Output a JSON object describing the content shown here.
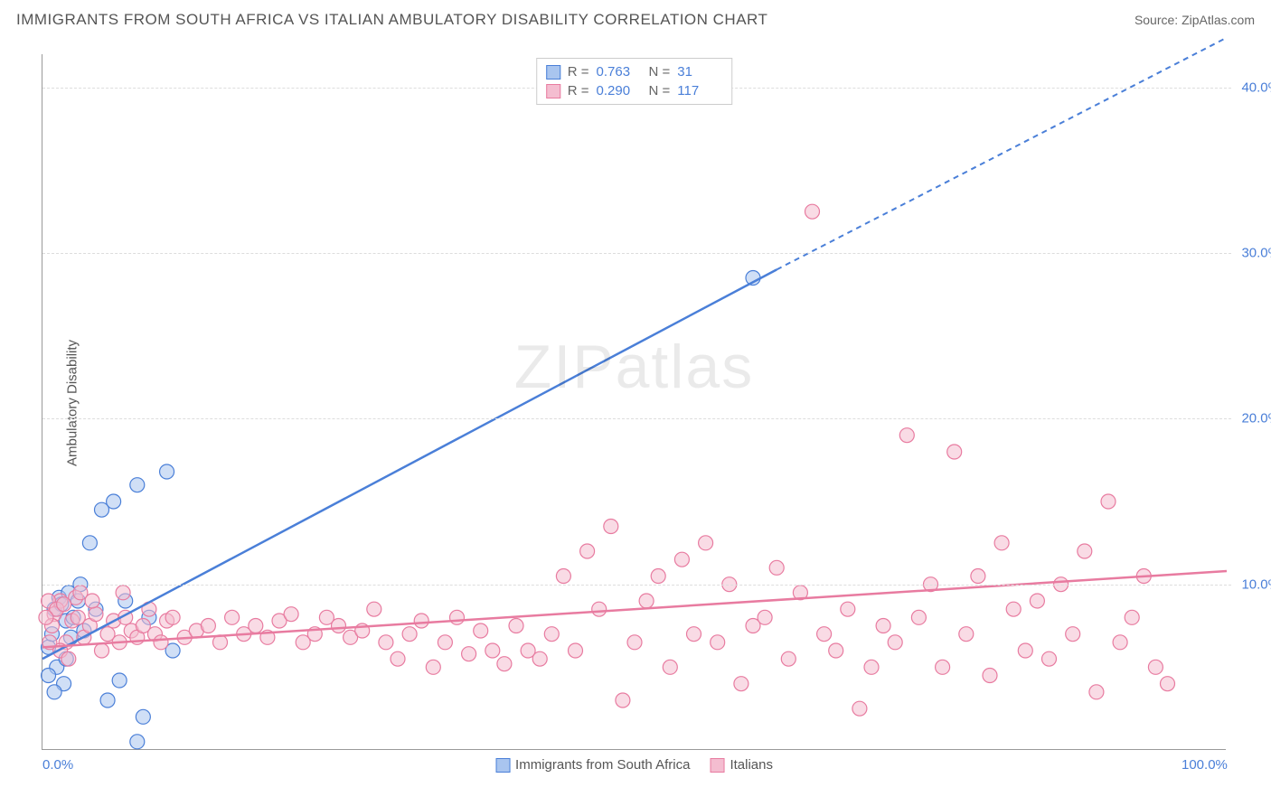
{
  "title": "IMMIGRANTS FROM SOUTH AFRICA VS ITALIAN AMBULATORY DISABILITY CORRELATION CHART",
  "source": "Source: ZipAtlas.com",
  "ylabel": "Ambulatory Disability",
  "watermark_zip": "ZIP",
  "watermark_atlas": "atlas",
  "chart": {
    "type": "scatter",
    "xlim": [
      0,
      100
    ],
    "ylim": [
      0,
      42
    ],
    "xticks": [
      {
        "v": 0,
        "label": "0.0%"
      },
      {
        "v": 100,
        "label": "100.0%"
      }
    ],
    "yticks": [
      {
        "v": 10,
        "label": "10.0%"
      },
      {
        "v": 20,
        "label": "20.0%"
      },
      {
        "v": 30,
        "label": "30.0%"
      },
      {
        "v": 40,
        "label": "40.0%"
      }
    ],
    "grid_color": "#dddddd",
    "background_color": "#ffffff",
    "marker_radius": 8,
    "marker_opacity": 0.55,
    "series": [
      {
        "name": "Immigrants from South Africa",
        "color": "#4a7fd8",
        "fill": "#a9c5ef",
        "R": "0.763",
        "N": "31",
        "trend": {
          "x1": 0,
          "y1": 5.5,
          "x2": 62,
          "y2": 29,
          "dash_from_x": 62,
          "x3": 100,
          "y3": 43
        },
        "points": [
          [
            0.5,
            6.2
          ],
          [
            0.8,
            7.0
          ],
          [
            1.0,
            8.5
          ],
          [
            1.2,
            5.0
          ],
          [
            1.4,
            9.2
          ],
          [
            1.6,
            8.8
          ],
          [
            1.8,
            4.0
          ],
          [
            2.0,
            7.8
          ],
          [
            2.2,
            9.5
          ],
          [
            2.4,
            6.8
          ],
          [
            2.6,
            8.0
          ],
          [
            3.0,
            9.0
          ],
          [
            3.2,
            10.0
          ],
          [
            3.5,
            7.2
          ],
          [
            4.0,
            12.5
          ],
          [
            4.5,
            8.5
          ],
          [
            5.0,
            14.5
          ],
          [
            5.5,
            3.0
          ],
          [
            6.0,
            15.0
          ],
          [
            6.5,
            4.2
          ],
          [
            7.0,
            9.0
          ],
          [
            8.0,
            16.0
          ],
          [
            8.5,
            2.0
          ],
          [
            9.0,
            8.0
          ],
          [
            10.5,
            16.8
          ],
          [
            11.0,
            6.0
          ],
          [
            0.5,
            4.5
          ],
          [
            1.0,
            3.5
          ],
          [
            2.0,
            5.5
          ],
          [
            8.0,
            0.5
          ],
          [
            60,
            28.5
          ]
        ]
      },
      {
        "name": "Italians",
        "color": "#e87ba0",
        "fill": "#f4bdd0",
        "R": "0.290",
        "N": "117",
        "trend": {
          "x1": 0,
          "y1": 6.2,
          "x2": 100,
          "y2": 10.8
        },
        "points": [
          [
            1,
            8.2
          ],
          [
            1.5,
            9.0
          ],
          [
            2,
            6.5
          ],
          [
            2.5,
            7.8
          ],
          [
            3,
            8.0
          ],
          [
            3.5,
            6.8
          ],
          [
            4,
            7.5
          ],
          [
            4.5,
            8.2
          ],
          [
            5,
            6.0
          ],
          [
            5.5,
            7.0
          ],
          [
            6,
            7.8
          ],
          [
            6.5,
            6.5
          ],
          [
            7,
            8.0
          ],
          [
            7.5,
            7.2
          ],
          [
            8,
            6.8
          ],
          [
            8.5,
            7.5
          ],
          [
            9,
            8.5
          ],
          [
            9.5,
            7.0
          ],
          [
            10,
            6.5
          ],
          [
            10.5,
            7.8
          ],
          [
            11,
            8.0
          ],
          [
            12,
            6.8
          ],
          [
            13,
            7.2
          ],
          [
            14,
            7.5
          ],
          [
            15,
            6.5
          ],
          [
            16,
            8.0
          ],
          [
            17,
            7.0
          ],
          [
            18,
            7.5
          ],
          [
            19,
            6.8
          ],
          [
            20,
            7.8
          ],
          [
            21,
            8.2
          ],
          [
            22,
            6.5
          ],
          [
            23,
            7.0
          ],
          [
            24,
            8.0
          ],
          [
            25,
            7.5
          ],
          [
            26,
            6.8
          ],
          [
            27,
            7.2
          ],
          [
            28,
            8.5
          ],
          [
            29,
            6.5
          ],
          [
            30,
            5.5
          ],
          [
            31,
            7.0
          ],
          [
            32,
            7.8
          ],
          [
            33,
            5.0
          ],
          [
            34,
            6.5
          ],
          [
            35,
            8.0
          ],
          [
            36,
            5.8
          ],
          [
            37,
            7.2
          ],
          [
            38,
            6.0
          ],
          [
            39,
            5.2
          ],
          [
            40,
            7.5
          ],
          [
            41,
            6.0
          ],
          [
            42,
            5.5
          ],
          [
            43,
            7.0
          ],
          [
            44,
            10.5
          ],
          [
            45,
            6.0
          ],
          [
            46,
            12.0
          ],
          [
            47,
            8.5
          ],
          [
            48,
            13.5
          ],
          [
            49,
            3.0
          ],
          [
            50,
            6.5
          ],
          [
            51,
            9.0
          ],
          [
            52,
            10.5
          ],
          [
            53,
            5.0
          ],
          [
            54,
            11.5
          ],
          [
            55,
            7.0
          ],
          [
            56,
            12.5
          ],
          [
            57,
            6.5
          ],
          [
            58,
            10.0
          ],
          [
            59,
            4.0
          ],
          [
            60,
            7.5
          ],
          [
            61,
            8.0
          ],
          [
            62,
            11.0
          ],
          [
            63,
            5.5
          ],
          [
            64,
            9.5
          ],
          [
            65,
            32.5
          ],
          [
            66,
            7.0
          ],
          [
            67,
            6.0
          ],
          [
            68,
            8.5
          ],
          [
            69,
            2.5
          ],
          [
            70,
            5.0
          ],
          [
            71,
            7.5
          ],
          [
            72,
            6.5
          ],
          [
            73,
            19.0
          ],
          [
            74,
            8.0
          ],
          [
            75,
            10.0
          ],
          [
            76,
            5.0
          ],
          [
            77,
            18.0
          ],
          [
            78,
            7.0
          ],
          [
            79,
            10.5
          ],
          [
            80,
            4.5
          ],
          [
            81,
            12.5
          ],
          [
            82,
            8.5
          ],
          [
            83,
            6.0
          ],
          [
            84,
            9.0
          ],
          [
            85,
            5.5
          ],
          [
            86,
            10.0
          ],
          [
            87,
            7.0
          ],
          [
            88,
            12.0
          ],
          [
            89,
            3.5
          ],
          [
            90,
            15.0
          ],
          [
            91,
            6.5
          ],
          [
            92,
            8.0
          ],
          [
            93,
            10.5
          ],
          [
            94,
            5.0
          ],
          [
            95,
            4.0
          ],
          [
            0.5,
            9.0
          ],
          [
            1.2,
            8.5
          ],
          [
            2.8,
            9.2
          ],
          [
            4.2,
            9.0
          ],
          [
            6.8,
            9.5
          ],
          [
            1.8,
            8.8
          ],
          [
            3.2,
            9.5
          ],
          [
            0.8,
            7.5
          ],
          [
            1.5,
            6.0
          ],
          [
            2.2,
            5.5
          ],
          [
            0.3,
            8.0
          ],
          [
            0.6,
            6.5
          ]
        ]
      }
    ]
  },
  "legend_bottom": [
    {
      "label": "Immigrants from South Africa",
      "series": 0
    },
    {
      "label": "Italians",
      "series": 1
    }
  ]
}
